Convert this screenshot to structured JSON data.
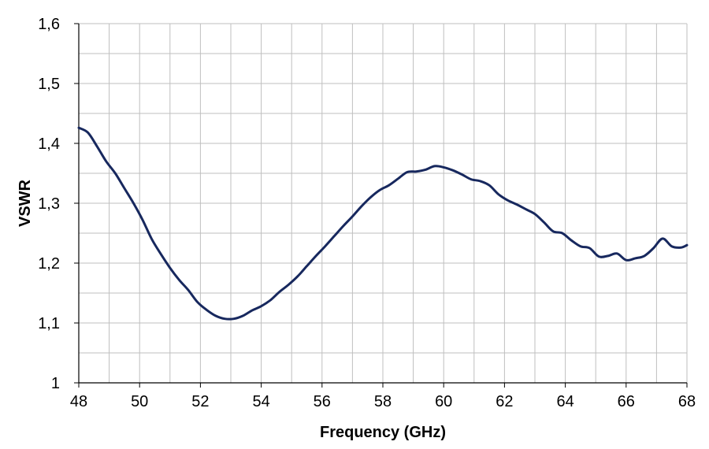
{
  "chart_data": {
    "type": "line",
    "title": "",
    "xlabel": "Frequency  (GHz)",
    "ylabel": "VSWR",
    "xlim": [
      48,
      68
    ],
    "ylim": [
      1,
      1.6
    ],
    "x_ticks": [
      48,
      50,
      52,
      54,
      56,
      58,
      60,
      62,
      64,
      66,
      68
    ],
    "y_ticks": [
      1,
      1.1,
      1.2,
      1.3,
      1.4,
      1.5,
      1.6
    ],
    "x_tick_labels": [
      "48",
      "50",
      "52",
      "54",
      "56",
      "58",
      "60",
      "62",
      "64",
      "66",
      "68"
    ],
    "y_tick_labels": [
      "1",
      "1,1",
      "1,2",
      "1,3",
      "1,4",
      "1,5",
      "1,6"
    ],
    "grid": true,
    "minor_grid_x": 1,
    "minor_grid_y": 0.05,
    "legend": "none",
    "series_color": "#17285e",
    "series": [
      {
        "x": [
          48,
          48.3,
          48.6,
          48.9,
          49.2,
          49.5,
          49.8,
          50.1,
          50.4,
          50.7,
          51.0,
          51.3,
          51.6,
          51.9,
          52.2,
          52.5,
          52.8,
          53.1,
          53.4,
          53.7,
          54.0,
          54.3,
          54.6,
          54.9,
          55.2,
          55.5,
          55.8,
          56.1,
          56.4,
          56.7,
          57.0,
          57.3,
          57.6,
          57.9,
          58.2,
          58.5,
          58.8,
          59.1,
          59.4,
          59.7,
          60.0,
          60.3,
          60.6,
          60.9,
          61.2,
          61.5,
          61.8,
          62.1,
          62.4,
          62.7,
          63.0,
          63.3,
          63.6,
          63.9,
          64.2,
          64.5,
          64.8,
          65.1,
          65.4,
          65.7,
          66.0,
          66.3,
          66.6,
          66.9,
          67.2,
          67.5,
          67.8,
          68.0
        ],
        "values": [
          1.426,
          1.418,
          1.395,
          1.37,
          1.35,
          1.325,
          1.3,
          1.272,
          1.24,
          1.215,
          1.192,
          1.172,
          1.155,
          1.135,
          1.122,
          1.112,
          1.107,
          1.107,
          1.112,
          1.121,
          1.128,
          1.138,
          1.152,
          1.164,
          1.178,
          1.195,
          1.212,
          1.228,
          1.245,
          1.262,
          1.278,
          1.295,
          1.31,
          1.322,
          1.33,
          1.341,
          1.352,
          1.353,
          1.356,
          1.362,
          1.36,
          1.355,
          1.348,
          1.34,
          1.337,
          1.33,
          1.315,
          1.305,
          1.298,
          1.29,
          1.282,
          1.268,
          1.253,
          1.25,
          1.238,
          1.228,
          1.225,
          1.211,
          1.212,
          1.216,
          1.205,
          1.208,
          1.212,
          1.225,
          1.241,
          1.228,
          1.226,
          1.23
        ]
      }
    ]
  }
}
